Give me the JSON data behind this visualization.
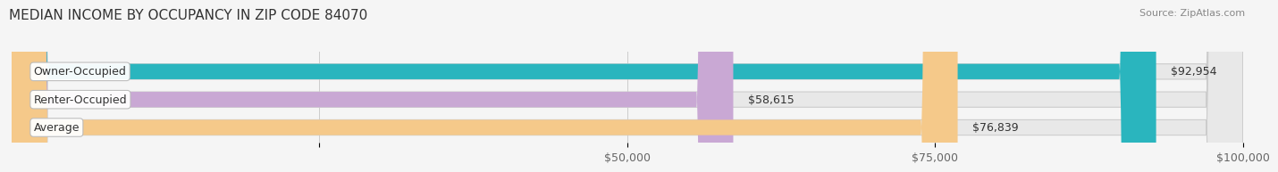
{
  "title": "MEDIAN INCOME BY OCCUPANCY IN ZIP CODE 84070",
  "source": "Source: ZipAtlas.com",
  "categories": [
    "Owner-Occupied",
    "Renter-Occupied",
    "Average"
  ],
  "values": [
    92954,
    58615,
    76839
  ],
  "bar_colors": [
    "#2ab5be",
    "#c9a8d4",
    "#f5c98a"
  ],
  "value_labels": [
    "$92,954",
    "$58,615",
    "$76,839"
  ],
  "xlim_max": 100000,
  "xtick_vals": [
    25000,
    50000,
    75000,
    100000
  ],
  "xticklabels": [
    "",
    "$50,000",
    "$75,000",
    "$100,000"
  ],
  "background_color": "#f5f5f5",
  "bar_bg_color": "#e8e8e8",
  "title_fontsize": 11,
  "label_fontsize": 9,
  "tick_fontsize": 9,
  "source_fontsize": 8
}
